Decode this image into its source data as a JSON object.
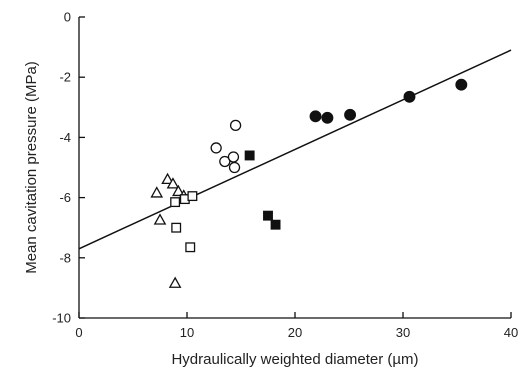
{
  "chart_data": {
    "type": "scatter",
    "title": "",
    "xlabel": "Hydraulically weighted diameter (µm)",
    "ylabel": "Mean cavitation pressure (MPa)",
    "xlim": [
      0,
      40
    ],
    "ylim": [
      -10,
      0
    ],
    "x_ticks": [
      0,
      10,
      20,
      30,
      40
    ],
    "y_ticks": [
      0,
      -2,
      -4,
      -6,
      -8,
      -10
    ],
    "grid": false,
    "legend": "none",
    "series": [
      {
        "marker": "open-triangle",
        "points": [
          [
            7.2,
            -5.85
          ],
          [
            7.5,
            -6.75
          ],
          [
            8.2,
            -5.4
          ],
          [
            8.7,
            -5.55
          ],
          [
            9.2,
            -5.8
          ],
          [
            9.7,
            -5.95
          ],
          [
            8.9,
            -8.85
          ]
        ]
      },
      {
        "marker": "open-square",
        "points": [
          [
            8.9,
            -6.15
          ],
          [
            9.8,
            -6.05
          ],
          [
            10.5,
            -5.95
          ],
          [
            9.0,
            -7.0
          ],
          [
            10.3,
            -7.65
          ]
        ]
      },
      {
        "marker": "open-circle",
        "points": [
          [
            12.7,
            -4.35
          ],
          [
            13.5,
            -4.8
          ],
          [
            14.3,
            -4.65
          ],
          [
            14.4,
            -5.0
          ],
          [
            14.5,
            -3.6
          ]
        ]
      },
      {
        "marker": "filled-square",
        "points": [
          [
            15.8,
            -4.6
          ],
          [
            17.5,
            -6.6
          ],
          [
            18.2,
            -6.9
          ]
        ]
      },
      {
        "marker": "filled-circle",
        "points": [
          [
            21.9,
            -3.3
          ],
          [
            23.0,
            -3.35
          ],
          [
            25.1,
            -3.25
          ],
          [
            30.6,
            -2.65
          ],
          [
            35.4,
            -2.25
          ]
        ]
      }
    ],
    "fit_line": {
      "x": [
        0,
        40
      ],
      "y": [
        -7.7,
        -1.1
      ]
    }
  }
}
